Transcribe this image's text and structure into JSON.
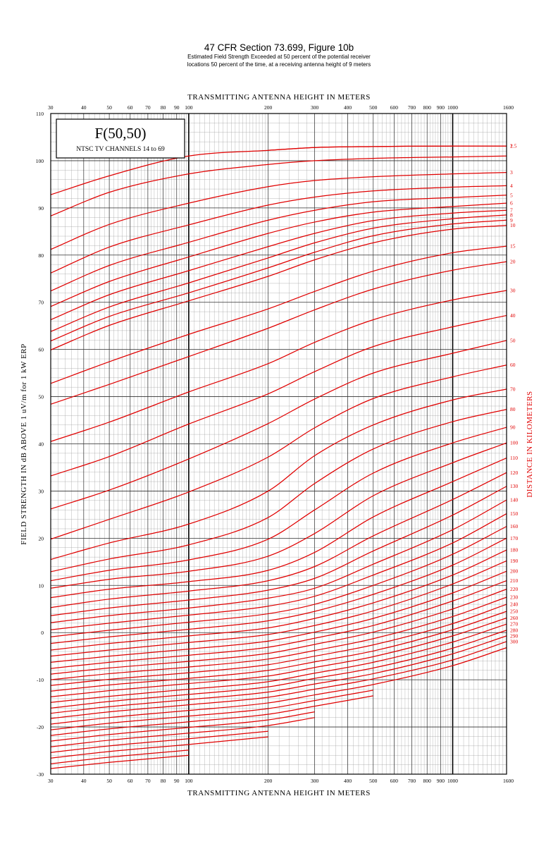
{
  "page": {
    "title": "47 CFR Section 73.699, Figure 10b",
    "subtitle_line1": "Estimated Field Strength Exceeded at 50 percent of the potential receiver",
    "subtitle_line2": "locations 50 percent of the time, at a receiving antenna height of 9 meters"
  },
  "chart_data": {
    "type": "line",
    "title": "F(50,50)",
    "subtitle": "NTSC TV CHANNELS 14 to 69",
    "xlabel": "TRANSMITTING ANTENNA HEIGHT IN METERS",
    "ylabel": "FIELD STRENGTH IN dB ABOVE 1 uV/m for 1 kW ERP",
    "right_label": "DISTANCE IN KILOMETERS",
    "x_scale": "log",
    "xlim": [
      30,
      1600
    ],
    "ylim": [
      -30,
      110
    ],
    "x_ticks": [
      30,
      40,
      50,
      60,
      70,
      80,
      90,
      100,
      200,
      300,
      400,
      500,
      600,
      700,
      800,
      900,
      1000,
      1600
    ],
    "x_tick_labels": [
      "30",
      "40",
      "50",
      "60",
      "70",
      "80",
      "90",
      "100",
      "200",
      "300",
      "400",
      "500",
      "600",
      "700",
      "800",
      "900",
      "1000",
      "1600"
    ],
    "y_ticks": [
      -30,
      -20,
      -10,
      0,
      10,
      20,
      30,
      40,
      50,
      60,
      70,
      80,
      90,
      100,
      110
    ],
    "y_tick_labels": [
      "-30",
      "-20",
      "-10",
      "0",
      "10",
      "20",
      "30",
      "40",
      "50",
      "60",
      "70",
      "80",
      "90",
      "100",
      "110"
    ],
    "grid": true,
    "legend_box_position": "top-left",
    "line_color": "#e00000",
    "x": [
      30,
      50,
      100,
      200,
      300,
      500,
      1000,
      1600
    ],
    "series": [
      {
        "name": "1.5",
        "values": [
          null,
          null,
          null,
          102.2,
          102.8,
          103.0,
          103.1,
          103.1
        ]
      },
      {
        "name": "2",
        "values": [
          92.8,
          96.8,
          101.0,
          102.2,
          102.8,
          103.0,
          103.1,
          103.1
        ]
      },
      {
        "name": "",
        "values": [
          88.3,
          93.3,
          97.2,
          99.2,
          100.0,
          100.5,
          100.8,
          101.0
        ]
      },
      {
        "name": "3",
        "values": [
          81.2,
          86.5,
          91.0,
          94.5,
          95.8,
          96.6,
          97.2,
          97.5
        ]
      },
      {
        "name": "4",
        "values": [
          76.2,
          81.7,
          86.4,
          90.6,
          92.3,
          93.6,
          94.4,
          94.7
        ]
      },
      {
        "name": "5",
        "values": [
          72.4,
          77.8,
          82.7,
          87.4,
          89.5,
          91.3,
          92.2,
          92.7
        ]
      },
      {
        "name": "6",
        "values": [
          69.1,
          74.4,
          79.6,
          84.6,
          87.0,
          89.1,
          90.3,
          91.0
        ]
      },
      {
        "name": "7",
        "values": [
          66.3,
          71.6,
          76.7,
          81.8,
          84.6,
          87.3,
          88.9,
          89.5
        ]
      },
      {
        "name": "8",
        "values": [
          63.8,
          69.0,
          74.1,
          79.4,
          82.6,
          85.7,
          87.7,
          88.5
        ]
      },
      {
        "name": "9",
        "values": [
          61.8,
          67.0,
          72.0,
          77.3,
          80.6,
          84.1,
          86.6,
          87.4
        ]
      },
      {
        "name": "10",
        "values": [
          59.9,
          65.1,
          70.3,
          75.5,
          79.0,
          82.6,
          85.5,
          86.3
        ]
      },
      {
        "name": "15",
        "values": [
          52.8,
          57.4,
          63.2,
          68.6,
          72.3,
          76.6,
          80.5,
          81.9
        ]
      },
      {
        "name": "20",
        "values": [
          48.4,
          52.6,
          58.5,
          64.5,
          68.4,
          72.8,
          76.8,
          78.6
        ]
      },
      {
        "name": "30",
        "values": [
          40.5,
          44.6,
          51.0,
          57.0,
          61.5,
          66.3,
          70.5,
          72.5
        ]
      },
      {
        "name": "40",
        "values": [
          33.2,
          37.3,
          44.2,
          50.6,
          55.3,
          60.6,
          64.8,
          67.2
        ]
      },
      {
        "name": "50",
        "values": [
          26.2,
          30.2,
          36.8,
          44.3,
          49.5,
          55.0,
          59.2,
          61.9
        ]
      },
      {
        "name": "60",
        "values": [
          19.8,
          24.0,
          29.8,
          37.2,
          43.4,
          49.6,
          54.2,
          56.7
        ]
      },
      {
        "name": "70",
        "values": [
          15.5,
          19.0,
          23.0,
          30.0,
          37.5,
          44.0,
          49.3,
          51.6
        ]
      },
      {
        "name": "80",
        "values": [
          12.9,
          15.6,
          18.6,
          24.4,
          31.6,
          38.9,
          44.7,
          47.3
        ]
      },
      {
        "name": "90",
        "values": [
          11.0,
          13.2,
          15.4,
          19.8,
          26.0,
          33.8,
          40.2,
          43.5
        ]
      },
      {
        "name": "100",
        "values": [
          9.4,
          11.3,
          13.0,
          16.2,
          21.0,
          29.0,
          36.0,
          40.2
        ]
      },
      {
        "name": "110",
        "values": [
          7.4,
          9.2,
          10.8,
          13.2,
          17.0,
          24.5,
          32.0,
          37.0
        ]
      },
      {
        "name": "120",
        "values": [
          5.3,
          7.1,
          8.8,
          11.0,
          14.0,
          20.5,
          28.2,
          33.9
        ]
      },
      {
        "name": "130",
        "values": [
          3.6,
          5.2,
          6.9,
          9.0,
          11.5,
          17.3,
          24.9,
          31.0
        ]
      },
      {
        "name": "140",
        "values": [
          2.1,
          3.6,
          5.2,
          7.3,
          9.4,
          14.5,
          21.8,
          28.1
        ]
      },
      {
        "name": "150",
        "values": [
          0.6,
          2.0,
          3.7,
          5.6,
          7.7,
          12.2,
          19.0,
          25.2
        ]
      },
      {
        "name": "160",
        "values": [
          -0.9,
          0.5,
          2.2,
          4.0,
          6.0,
          10.0,
          16.6,
          22.5
        ]
      },
      {
        "name": "170",
        "values": [
          -2.3,
          -0.9,
          0.7,
          2.5,
          4.5,
          8.1,
          14.3,
          20.0
        ]
      },
      {
        "name": "180",
        "values": [
          -3.7,
          -2.3,
          -0.7,
          1.0,
          3.0,
          6.3,
          12.2,
          17.5
        ]
      },
      {
        "name": "190",
        "values": [
          -5.0,
          -3.7,
          -2.1,
          -0.4,
          1.5,
          4.6,
          10.3,
          15.2
        ]
      },
      {
        "name": "200",
        "values": [
          -6.3,
          -5.0,
          -3.5,
          -1.8,
          0.1,
          3.0,
          8.4,
          13.0
        ]
      },
      {
        "name": "210",
        "values": [
          -7.6,
          -6.3,
          -4.8,
          -3.1,
          -1.2,
          1.5,
          6.7,
          11.0
        ]
      },
      {
        "name": "220",
        "values": [
          -8.8,
          -7.5,
          -6.1,
          -4.4,
          -2.5,
          0.1,
          5.0,
          9.2
        ]
      },
      {
        "name": "230",
        "values": [
          -10.0,
          -8.7,
          -7.3,
          -5.6,
          -3.8,
          -1.3,
          3.4,
          7.5
        ]
      },
      {
        "name": "240",
        "values": [
          -11.2,
          -9.9,
          -8.5,
          -6.8,
          -5.0,
          -2.6,
          1.9,
          6.0
        ]
      },
      {
        "name": "250",
        "values": [
          -12.4,
          -11.1,
          -9.7,
          -8.0,
          -6.2,
          -3.9,
          0.6,
          4.5
        ]
      },
      {
        "name": "260",
        "values": [
          -13.6,
          -12.3,
          -10.8,
          -9.2,
          -7.4,
          -5.1,
          -0.7,
          3.1
        ]
      },
      {
        "name": "270",
        "values": [
          -14.8,
          -13.5,
          -12.0,
          -10.4,
          -8.6,
          -6.3,
          -2.0,
          1.8
        ]
      },
      {
        "name": "280",
        "values": [
          -16.0,
          -14.6,
          -13.1,
          -11.5,
          -9.7,
          -7.5,
          -3.3,
          0.5
        ]
      },
      {
        "name": "290",
        "values": [
          -17.1,
          -15.7,
          -14.2,
          -12.6,
          -10.9,
          -8.7,
          -4.5,
          -0.7
        ]
      },
      {
        "name": "300",
        "values": [
          -18.2,
          -16.8,
          -15.3,
          -13.7,
          -12.0,
          -9.8,
          -5.8,
          -1.9
        ]
      },
      {
        "name": "",
        "values": [
          -19.4,
          -18.0,
          -16.5,
          -14.9,
          -13.2,
          -11.0,
          -7.0,
          -3.2
        ]
      },
      {
        "name": "",
        "values": [
          -20.6,
          -19.2,
          -17.7,
          -16.1,
          -14.4,
          -12.2,
          null,
          null
        ]
      },
      {
        "name": "",
        "values": [
          -21.8,
          -20.4,
          -18.9,
          -17.3,
          -15.6,
          -13.4,
          null,
          null
        ]
      },
      {
        "name": "",
        "values": [
          -23.0,
          -21.6,
          -20.1,
          -18.5,
          -16.8,
          null,
          null,
          null
        ]
      },
      {
        "name": "",
        "values": [
          -24.2,
          -22.8,
          -21.3,
          -19.7,
          -18.0,
          null,
          null,
          null
        ]
      },
      {
        "name": "",
        "values": [
          -25.4,
          -24.0,
          -22.5,
          -20.9,
          null,
          null,
          null,
          null
        ]
      },
      {
        "name": "",
        "values": [
          -26.6,
          -25.2,
          -23.7,
          -22.1,
          null,
          null,
          null,
          null
        ]
      },
      {
        "name": "",
        "values": [
          -27.8,
          -26.4,
          -24.9,
          null,
          null,
          null,
          null,
          null
        ]
      },
      {
        "name": "",
        "values": [
          -28.8,
          -27.5,
          -26.0,
          null,
          null,
          null,
          null,
          null
        ]
      }
    ]
  }
}
